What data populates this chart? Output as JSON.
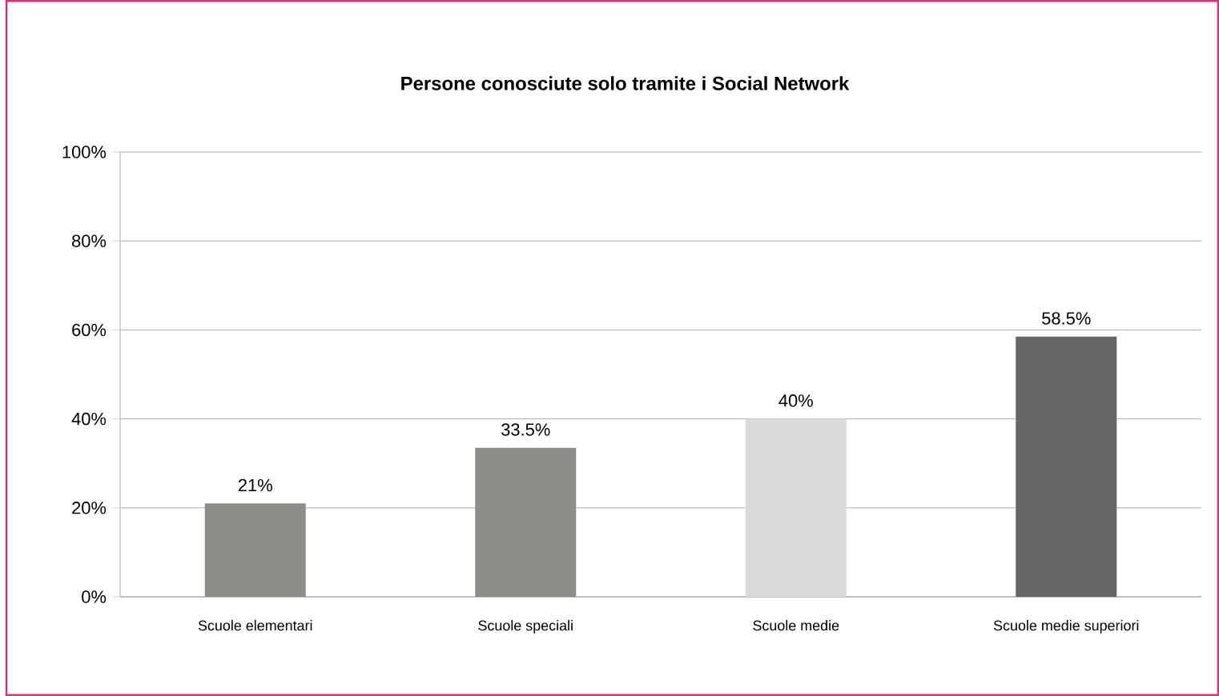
{
  "chart_data": {
    "type": "bar",
    "title": "Persone conosciute solo tramite i Social Network",
    "categories": [
      "Scuole elementari",
      "Scuole speciali",
      "Scuole medie",
      "Scuole medie superiori"
    ],
    "values": [
      21,
      33.5,
      40,
      58.5
    ],
    "colors": [
      "#8c8e89",
      "#8c8e89",
      "#d9d9d7",
      "#666666"
    ],
    "value_labels": [
      "21%",
      "33.5%",
      "40%",
      "58.5%"
    ],
    "ylim": [
      0,
      100
    ],
    "yticks": [
      {
        "value": 0,
        "label": "0%"
      },
      {
        "value": 20,
        "label": "20%"
      },
      {
        "value": 40,
        "label": "40%"
      },
      {
        "value": 60,
        "label": "60%"
      },
      {
        "value": 80,
        "label": "80%"
      },
      {
        "value": 100,
        "label": "100%"
      }
    ],
    "grid": "y"
  }
}
